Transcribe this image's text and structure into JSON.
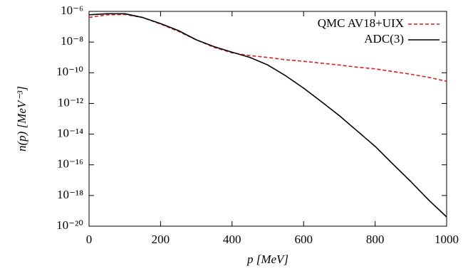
{
  "chart_data": {
    "type": "line",
    "xlabel": "p [MeV]",
    "ylabel": "n(p) [MeV⁻³]",
    "x": [
      0,
      50,
      100,
      150,
      200,
      250,
      300,
      350,
      400,
      450,
      500,
      550,
      600,
      650,
      700,
      750,
      800,
      850,
      900,
      950,
      1000
    ],
    "series": [
      {
        "name": "QMC AV18+UIX",
        "color": "#e41a1c",
        "dash": true,
        "values": [
          4e-07,
          6e-07,
          6.3e-07,
          4e-07,
          1.5e-07,
          5e-08,
          1.4e-08,
          4.5e-09,
          2e-09,
          1.3e-09,
          1e-09,
          7e-10,
          5.6e-10,
          4.2e-10,
          3.2e-10,
          2.3e-10,
          1.8e-10,
          1.2e-10,
          8e-11,
          5e-11,
          2.8e-11
        ]
      },
      {
        "name": "ADC(3)",
        "color": "#000000",
        "dash": false,
        "values": [
          6e-07,
          7e-07,
          7e-07,
          4e-07,
          1.6e-07,
          5.6e-08,
          1.4e-08,
          5e-09,
          2.2e-09,
          1e-09,
          3.2e-10,
          6.3e-11,
          1e-11,
          1.3e-12,
          1.6e-13,
          1.6e-14,
          1.6e-15,
          1.1e-16,
          8e-18,
          5e-19,
          4e-20
        ]
      }
    ],
    "xlim": [
      0,
      1000
    ],
    "xticks": [
      0,
      200,
      400,
      600,
      800,
      1000
    ],
    "ylim": [
      1e-20,
      1e-06
    ],
    "yticks": [
      {
        "value": 1e-20,
        "label": "10⁻²⁰"
      },
      {
        "value": 1e-18,
        "label": "10⁻¹⁸"
      },
      {
        "value": 1e-16,
        "label": "10⁻¹⁶"
      },
      {
        "value": 1e-14,
        "label": "10⁻¹⁴"
      },
      {
        "value": 1e-12,
        "label": "10⁻¹²"
      },
      {
        "value": 1e-10,
        "label": "10⁻¹⁰"
      },
      {
        "value": 1e-08,
        "label": "10⁻⁸"
      },
      {
        "value": 1e-06,
        "label": "10⁻⁶"
      }
    ],
    "log_y": true,
    "grid": false,
    "legend": "top-right"
  }
}
